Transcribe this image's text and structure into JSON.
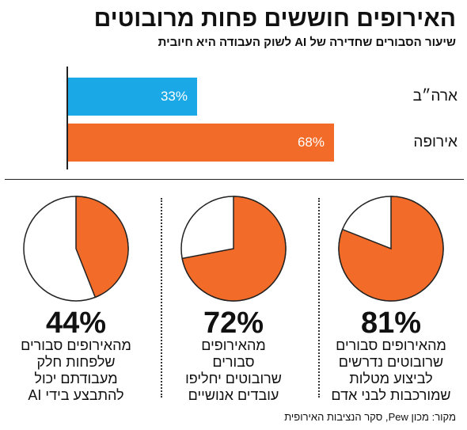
{
  "title": "האירופים חוששים פחות מרובוטים",
  "subtitle": "שיעור הסבורים שחדירה של AI לשוק העבודה היא חיובית",
  "colors": {
    "accent": "#f26b28",
    "us_bar": "#1ba8e6",
    "pie_rest": "#ffffff",
    "pie_stroke": "#222222"
  },
  "chart_data": [
    {
      "type": "bar",
      "orientation": "horizontal",
      "categories": [
        "ארה״ב",
        "אירופה"
      ],
      "values": [
        33,
        68
      ],
      "value_labels": [
        "33%",
        "68%"
      ],
      "xlim": [
        0,
        100
      ],
      "colors": [
        "#1ba8e6",
        "#f26b28"
      ]
    },
    {
      "type": "pie",
      "slices": [
        {
          "value": 81,
          "label": "81%",
          "description": "מהאירופים סבורים\nשרובוטים נדרשים\nלביצוע מטלות\nשמורכבות לבני אדם"
        },
        {
          "value": 72,
          "label": "72%",
          "description": "מהאירופים\nסבורים\nשרובוטים יחליפו\nעובדים אנושיים"
        },
        {
          "value": 44,
          "label": "44%",
          "description": "מהאירופים סבורים\nשלפחות חלק\nמעבודתם יכול\nלהתבצע בידי AI"
        }
      ]
    }
  ],
  "source": "מקור: מכון Pew, סקר הנציבות האירופית"
}
